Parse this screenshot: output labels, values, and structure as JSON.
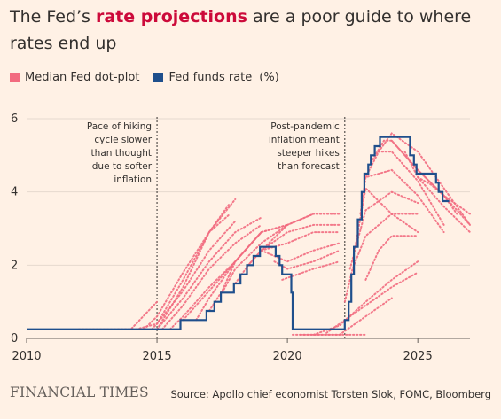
{
  "headline": {
    "before": "The Fed’s ",
    "highlight": "rate projections",
    "after": " are a poor guide to where rates end up"
  },
  "legend": {
    "median_label": "Median Fed dot-plot",
    "ffr_label": "Fed funds rate",
    "unit": "(%)"
  },
  "colors": {
    "background": "#fff1e5",
    "dotplot": "#f26b7f",
    "ffr": "#1f4f8c",
    "highlight": "#cc0a3a",
    "grid": "#e6d9ce",
    "text": "#33302e"
  },
  "footer": {
    "brand": "FINANCIAL TIMES",
    "source": "Source: Apollo chief economist Torsten Slok, FOMC, Bloomberg"
  },
  "chart_data": {
    "type": "line",
    "title": "",
    "xlabel": "",
    "ylabel": "",
    "xlim": [
      2010,
      2027
    ],
    "ylim": [
      0,
      6
    ],
    "grid": true,
    "legend_position": "top-left",
    "x_ticks": [
      2010,
      2015,
      2020,
      2025
    ],
    "y_ticks": [
      0,
      2,
      4,
      6
    ],
    "annotations": [
      {
        "x": 2015.0,
        "text": [
          "Pace of hiking",
          "cycle slower",
          "than thought",
          "due to softer",
          "inflation"
        ]
      },
      {
        "x": 2022.2,
        "text": [
          "Post-pandemic",
          "inflation meant",
          "steeper hikes",
          "than forecast"
        ]
      }
    ],
    "fed_funds_rate": {
      "name": "Fed funds rate",
      "points": [
        [
          2010.0,
          0.25
        ],
        [
          2015.9,
          0.25
        ],
        [
          2015.9,
          0.5
        ],
        [
          2016.9,
          0.5
        ],
        [
          2016.9,
          0.75
        ],
        [
          2017.2,
          0.75
        ],
        [
          2017.2,
          1.0
        ],
        [
          2017.45,
          1.0
        ],
        [
          2017.45,
          1.25
        ],
        [
          2017.95,
          1.25
        ],
        [
          2017.95,
          1.5
        ],
        [
          2018.2,
          1.5
        ],
        [
          2018.2,
          1.75
        ],
        [
          2018.45,
          1.75
        ],
        [
          2018.45,
          2.0
        ],
        [
          2018.7,
          2.0
        ],
        [
          2018.7,
          2.25
        ],
        [
          2018.95,
          2.25
        ],
        [
          2018.95,
          2.5
        ],
        [
          2019.55,
          2.5
        ],
        [
          2019.55,
          2.25
        ],
        [
          2019.7,
          2.25
        ],
        [
          2019.7,
          2.0
        ],
        [
          2019.8,
          2.0
        ],
        [
          2019.8,
          1.75
        ],
        [
          2020.15,
          1.75
        ],
        [
          2020.15,
          1.25
        ],
        [
          2020.2,
          1.25
        ],
        [
          2020.2,
          0.25
        ],
        [
          2022.2,
          0.25
        ],
        [
          2022.2,
          0.5
        ],
        [
          2022.35,
          0.5
        ],
        [
          2022.35,
          1.0
        ],
        [
          2022.45,
          1.0
        ],
        [
          2022.45,
          1.75
        ],
        [
          2022.55,
          1.75
        ],
        [
          2022.55,
          2.5
        ],
        [
          2022.7,
          2.5
        ],
        [
          2022.7,
          3.25
        ],
        [
          2022.85,
          3.25
        ],
        [
          2022.85,
          4.0
        ],
        [
          2022.95,
          4.0
        ],
        [
          2022.95,
          4.5
        ],
        [
          2023.1,
          4.5
        ],
        [
          2023.1,
          4.75
        ],
        [
          2023.2,
          4.75
        ],
        [
          2023.2,
          5.0
        ],
        [
          2023.35,
          5.0
        ],
        [
          2023.35,
          5.25
        ],
        [
          2023.55,
          5.25
        ],
        [
          2023.55,
          5.5
        ],
        [
          2024.7,
          5.5
        ],
        [
          2024.7,
          5.0
        ],
        [
          2024.85,
          5.0
        ],
        [
          2024.85,
          4.75
        ],
        [
          2024.95,
          4.75
        ],
        [
          2024.95,
          4.5
        ],
        [
          2025.7,
          4.5
        ],
        [
          2025.7,
          4.25
        ],
        [
          2025.8,
          4.25
        ],
        [
          2025.8,
          4.0
        ],
        [
          2025.95,
          4.0
        ],
        [
          2025.95,
          3.75
        ],
        [
          2026.2,
          3.75
        ]
      ]
    },
    "median_dot_plot_paths": [
      [
        [
          2012.0,
          0.25
        ],
        [
          2014.0,
          0.25
        ],
        [
          2015.0,
          1.0
        ]
      ],
      [
        [
          2013.5,
          0.25
        ],
        [
          2015.0,
          0.25
        ],
        [
          2016.0,
          1.4
        ],
        [
          2017.0,
          2.9
        ],
        [
          2018.0,
          3.8
        ]
      ],
      [
        [
          2014.2,
          0.25
        ],
        [
          2015.0,
          0.4
        ],
        [
          2016.0,
          1.6
        ],
        [
          2017.0,
          2.9
        ],
        [
          2017.8,
          3.7
        ]
      ],
      [
        [
          2014.5,
          0.25
        ],
        [
          2015.0,
          0.6
        ],
        [
          2016.0,
          1.8
        ],
        [
          2017.0,
          2.9
        ],
        [
          2017.8,
          3.4
        ]
      ],
      [
        [
          2014.8,
          0.25
        ],
        [
          2015.0,
          0.4
        ],
        [
          2016.0,
          1.3
        ],
        [
          2017.0,
          2.4
        ],
        [
          2018.0,
          3.2
        ]
      ],
      [
        [
          2015.0,
          0.25
        ],
        [
          2016.0,
          1.1
        ],
        [
          2017.0,
          2.1
        ],
        [
          2018.0,
          2.9
        ],
        [
          2019.0,
          3.3
        ]
      ],
      [
        [
          2015.2,
          0.25
        ],
        [
          2016.0,
          0.9
        ],
        [
          2017.0,
          1.9
        ],
        [
          2018.0,
          2.6
        ],
        [
          2019.0,
          3.1
        ]
      ],
      [
        [
          2015.5,
          0.25
        ],
        [
          2016.0,
          0.6
        ],
        [
          2017.0,
          1.4
        ],
        [
          2018.0,
          2.1
        ],
        [
          2019.0,
          2.9
        ]
      ],
      [
        [
          2016.0,
          0.5
        ],
        [
          2017.0,
          1.3
        ],
        [
          2018.0,
          2.1
        ],
        [
          2019.0,
          2.9
        ]
      ],
      [
        [
          2016.5,
          0.5
        ],
        [
          2017.0,
          1.1
        ],
        [
          2018.0,
          2.1
        ],
        [
          2019.0,
          2.9
        ],
        [
          2020.0,
          3.1
        ]
      ],
      [
        [
          2017.0,
          0.75
        ],
        [
          2017.5,
          1.3
        ],
        [
          2018.0,
          2.1
        ],
        [
          2019.0,
          2.9
        ],
        [
          2020.0,
          3.1
        ]
      ],
      [
        [
          2017.5,
          1.25
        ],
        [
          2018.0,
          1.9
        ],
        [
          2019.0,
          2.6
        ],
        [
          2020.0,
          3.1
        ],
        [
          2021.0,
          3.4
        ]
      ],
      [
        [
          2018.0,
          1.5
        ],
        [
          2018.5,
          2.0
        ],
        [
          2019.0,
          2.4
        ],
        [
          2020.0,
          3.1
        ],
        [
          2021.0,
          3.4
        ],
        [
          2022.0,
          3.4
        ]
      ],
      [
        [
          2018.5,
          2.0
        ],
        [
          2019.0,
          2.4
        ],
        [
          2020.0,
          2.9
        ],
        [
          2021.0,
          3.1
        ],
        [
          2022.0,
          3.1
        ]
      ],
      [
        [
          2019.0,
          2.4
        ],
        [
          2020.0,
          2.6
        ],
        [
          2021.0,
          2.9
        ],
        [
          2022.0,
          2.9
        ]
      ],
      [
        [
          2019.0,
          2.4
        ],
        [
          2020.0,
          2.1
        ],
        [
          2021.0,
          2.4
        ],
        [
          2022.0,
          2.6
        ]
      ],
      [
        [
          2019.5,
          2.1
        ],
        [
          2020.0,
          1.9
        ],
        [
          2021.0,
          2.1
        ],
        [
          2022.0,
          2.4
        ]
      ],
      [
        [
          2019.8,
          1.6
        ],
        [
          2020.2,
          1.7
        ],
        [
          2021.0,
          1.9
        ],
        [
          2022.0,
          2.1
        ]
      ],
      [
        [
          2020.2,
          0.1
        ],
        [
          2021.0,
          0.1
        ],
        [
          2022.0,
          0.1
        ],
        [
          2023.0,
          0.1
        ]
      ],
      [
        [
          2020.5,
          0.1
        ],
        [
          2022.0,
          0.1
        ],
        [
          2023.0,
          0.6
        ],
        [
          2024.0,
          1.1
        ]
      ],
      [
        [
          2021.0,
          0.1
        ],
        [
          2022.0,
          0.35
        ],
        [
          2023.0,
          1.0
        ],
        [
          2024.0,
          1.6
        ],
        [
          2025.0,
          2.1
        ]
      ],
      [
        [
          2021.5,
          0.15
        ],
        [
          2022.0,
          0.4
        ],
        [
          2023.0,
          0.9
        ],
        [
          2024.0,
          1.4
        ],
        [
          2025.0,
          1.8
        ]
      ],
      [
        [
          2022.2,
          1.0
        ],
        [
          2022.5,
          1.9
        ],
        [
          2023.0,
          2.8
        ],
        [
          2024.0,
          3.4
        ],
        [
          2025.0,
          3.4
        ]
      ],
      [
        [
          2022.4,
          1.9
        ],
        [
          2023.0,
          3.5
        ],
        [
          2024.0,
          4.0
        ],
        [
          2025.0,
          3.7
        ]
      ],
      [
        [
          2022.6,
          2.5
        ],
        [
          2023.0,
          4.1
        ],
        [
          2024.0,
          3.4
        ],
        [
          2025.0,
          2.9
        ]
      ],
      [
        [
          2022.8,
          3.4
        ],
        [
          2023.0,
          4.4
        ],
        [
          2024.0,
          4.6
        ],
        [
          2025.0,
          3.9
        ],
        [
          2026.0,
          2.9
        ]
      ],
      [
        [
          2023.0,
          4.4
        ],
        [
          2023.5,
          5.1
        ],
        [
          2024.0,
          5.1
        ],
        [
          2025.0,
          4.3
        ],
        [
          2026.0,
          3.1
        ]
      ],
      [
        [
          2023.2,
          4.8
        ],
        [
          2023.7,
          5.4
        ],
        [
          2024.0,
          5.4
        ],
        [
          2025.0,
          4.6
        ],
        [
          2026.0,
          3.9
        ],
        [
          2026.5,
          3.4
        ]
      ],
      [
        [
          2023.5,
          5.1
        ],
        [
          2024.0,
          5.6
        ],
        [
          2025.0,
          5.1
        ],
        [
          2026.0,
          4.1
        ],
        [
          2027.0,
          3.1
        ]
      ],
      [
        [
          2024.0,
          5.4
        ],
        [
          2025.0,
          4.6
        ],
        [
          2026.0,
          3.9
        ],
        [
          2027.0,
          3.4
        ]
      ],
      [
        [
          2024.5,
          5.1
        ],
        [
          2025.0,
          4.4
        ],
        [
          2026.0,
          3.6
        ],
        [
          2027.0,
          2.9
        ]
      ],
      [
        [
          2025.0,
          4.4
        ],
        [
          2025.5,
          4.2
        ],
        [
          2026.0,
          3.9
        ],
        [
          2027.0,
          3.1
        ]
      ],
      [
        [
          2023.0,
          1.6
        ],
        [
          2023.5,
          2.4
        ],
        [
          2024.0,
          2.8
        ],
        [
          2025.0,
          2.8
        ]
      ]
    ]
  }
}
